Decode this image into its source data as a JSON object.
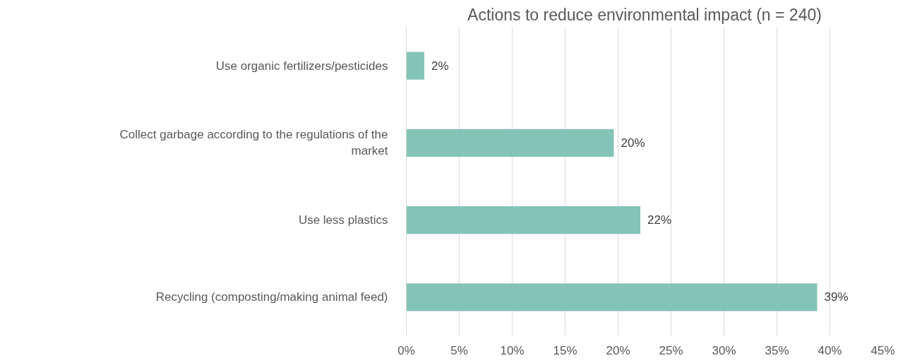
{
  "chart_data": {
    "type": "bar",
    "orientation": "horizontal",
    "title": "Actions to reduce environmental impact (n = 240)",
    "categories": [
      "Use organic fertilizers/pesticides",
      "Collect garbage according to the regulations of the market",
      "Use less plastics",
      "Recycling (composting/making animal feed)"
    ],
    "values": [
      1.7,
      19.6,
      22.1,
      38.8
    ],
    "value_labels": [
      "2%",
      "20%",
      "22%",
      "39%"
    ],
    "color": "#84c4b6",
    "xlim": [
      0,
      45
    ],
    "xticks": [
      {
        "value": 0,
        "label": "0%"
      },
      {
        "value": 5,
        "label": "5%"
      },
      {
        "value": 10,
        "label": "10%"
      },
      {
        "value": 15,
        "label": "15%"
      },
      {
        "value": 20,
        "label": "20%"
      },
      {
        "value": 25,
        "label": "25%"
      },
      {
        "value": 30,
        "label": "30%"
      },
      {
        "value": 35,
        "label": "35%"
      },
      {
        "value": 40,
        "label": "40%"
      },
      {
        "value": 45,
        "label": "45%"
      }
    ],
    "grid": "x"
  }
}
